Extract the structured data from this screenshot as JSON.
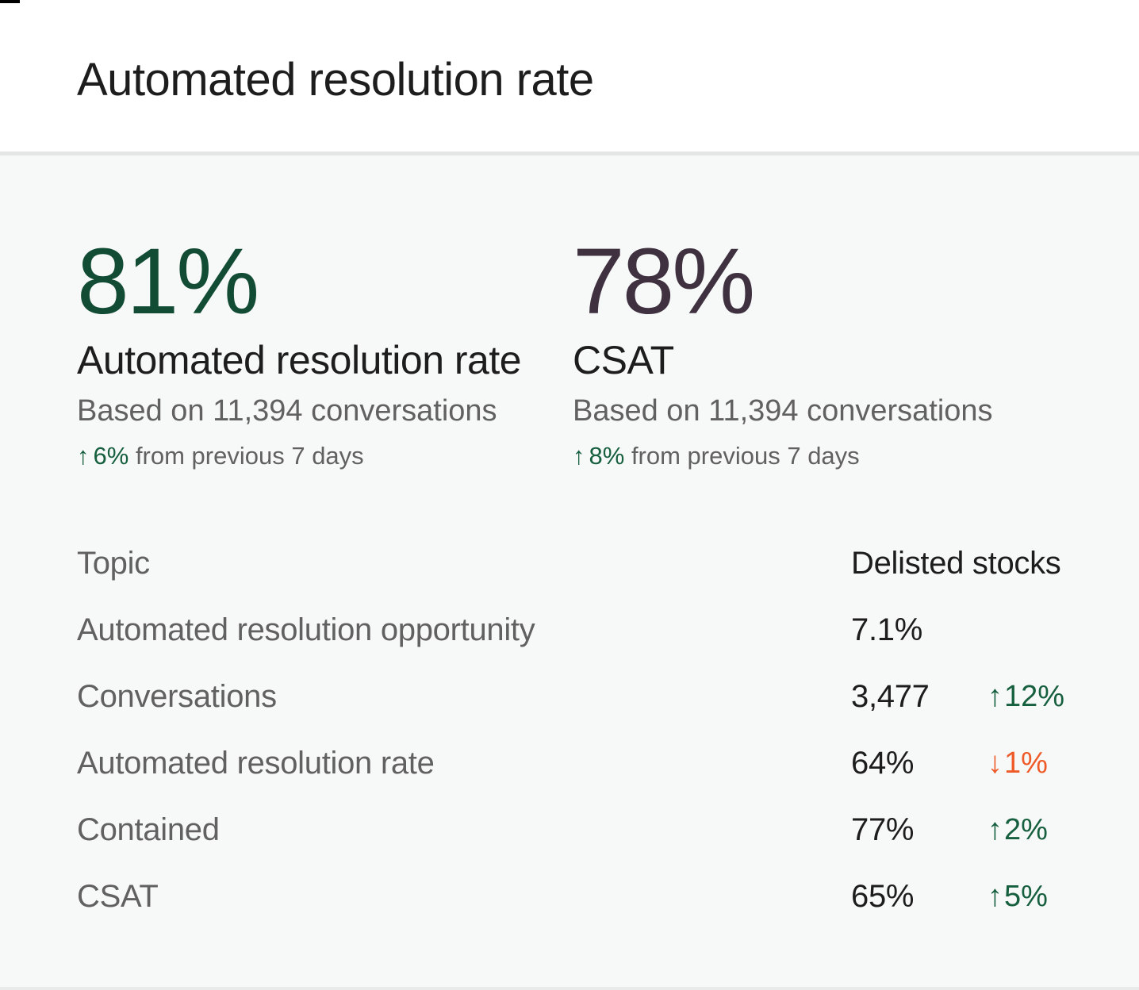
{
  "header": {
    "title": "Automated resolution rate"
  },
  "colors": {
    "green_dark": "#124c34",
    "green": "#17603f",
    "orange": "#ef5b28",
    "plum": "#3f3140",
    "ink": "#1d1d1d",
    "gray": "#616161",
    "bg": "#f7f8f8",
    "divider": "#e4e6e5",
    "header_bg": "#ffffff"
  },
  "stats": [
    {
      "value": "81%",
      "accent": "green",
      "label": "Automated resolution rate",
      "basis": "Based on 11,394 conversations",
      "change": {
        "arrow": "↑",
        "value": "6%",
        "suffix": "from previous 7 days",
        "direction": "up"
      }
    },
    {
      "value": "78%",
      "accent": "plum",
      "label": "CSAT",
      "basis": "Based on 11,394 conversations",
      "change": {
        "arrow": "↑",
        "value": "8%",
        "suffix": "from previous 7 days",
        "direction": "up"
      }
    }
  ],
  "table": {
    "topic_header": "Topic",
    "column_header": "Delisted stocks",
    "rows": [
      {
        "label": "Automated resolution opportunity",
        "value": "7.1%"
      },
      {
        "label": "Conversations",
        "value": "3,477",
        "change": {
          "arrow": "↑",
          "value": "12%",
          "direction": "up"
        }
      },
      {
        "label": "Automated resolution rate",
        "value": "64%",
        "change": {
          "arrow": "↓",
          "value": "1%",
          "direction": "down"
        }
      },
      {
        "label": "Contained",
        "value": "77%",
        "change": {
          "arrow": "↑",
          "value": "2%",
          "direction": "up"
        }
      },
      {
        "label": "CSAT",
        "value": "65%",
        "change": {
          "arrow": "↑",
          "value": "5%",
          "direction": "up"
        }
      }
    ]
  }
}
